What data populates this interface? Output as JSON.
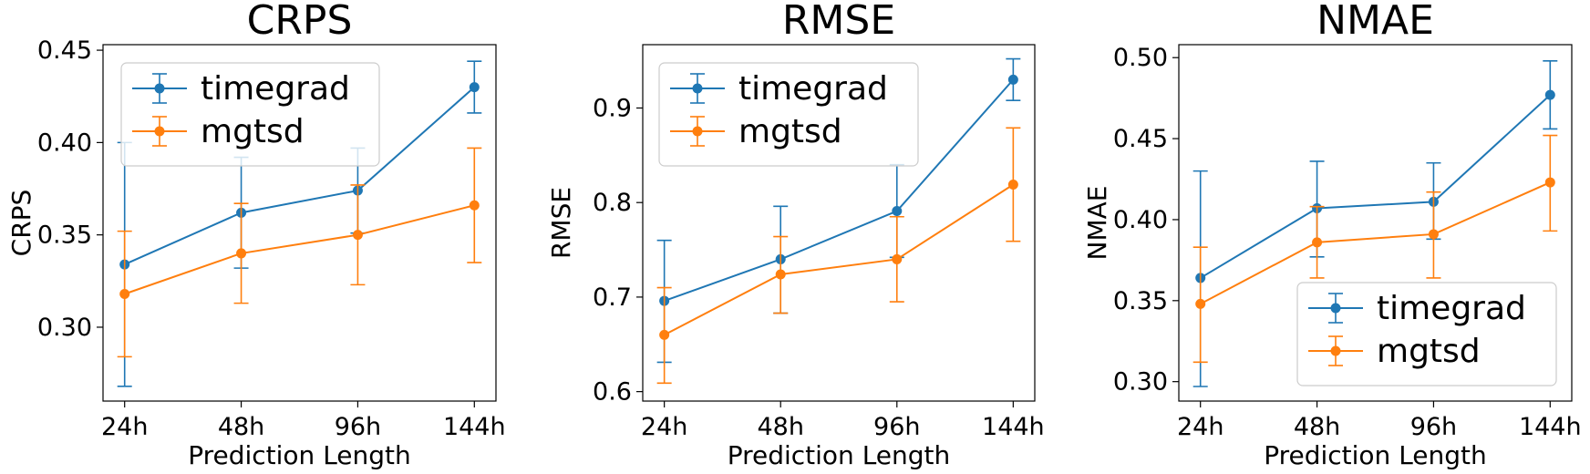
{
  "colors": {
    "timegrad": "#1f77b4",
    "mgtsd": "#ff7f0e"
  },
  "chart_data": [
    {
      "type": "line",
      "title": "CRPS",
      "xlabel": "Prediction Length",
      "ylabel": "CRPS",
      "categories": [
        "24h",
        "48h",
        "96h",
        "144h"
      ],
      "ylim": [
        0.26,
        0.453
      ],
      "yticks": [
        0.3,
        0.35,
        0.4,
        0.45
      ],
      "ytick_labels": [
        "0.30",
        "0.35",
        "0.40",
        "0.45"
      ],
      "legend_position": "upper-left",
      "series": [
        {
          "name": "timegrad",
          "values": [
            0.334,
            0.362,
            0.374,
            0.43
          ],
          "err_low": [
            0.268,
            0.332,
            0.351,
            0.416
          ],
          "err_high": [
            0.4,
            0.392,
            0.397,
            0.444
          ]
        },
        {
          "name": "mgtsd",
          "values": [
            0.318,
            0.34,
            0.35,
            0.366
          ],
          "err_low": [
            0.284,
            0.313,
            0.323,
            0.335
          ],
          "err_high": [
            0.352,
            0.367,
            0.377,
            0.397
          ]
        }
      ]
    },
    {
      "type": "line",
      "title": "RMSE",
      "xlabel": "Prediction Length",
      "ylabel": "RMSE",
      "categories": [
        "24h",
        "48h",
        "96h",
        "144h"
      ],
      "ylim": [
        0.59,
        0.967
      ],
      "yticks": [
        0.6,
        0.7,
        0.8,
        0.9
      ],
      "ytick_labels": [
        "0.6",
        "0.7",
        "0.8",
        "0.9"
      ],
      "legend_position": "upper-left",
      "series": [
        {
          "name": "timegrad",
          "values": [
            0.696,
            0.74,
            0.791,
            0.93
          ],
          "err_low": [
            0.631,
            0.683,
            0.742,
            0.908
          ],
          "err_high": [
            0.76,
            0.796,
            0.84,
            0.952
          ]
        },
        {
          "name": "mgtsd",
          "values": [
            0.66,
            0.724,
            0.74,
            0.819
          ],
          "err_low": [
            0.609,
            0.683,
            0.695,
            0.759
          ],
          "err_high": [
            0.71,
            0.764,
            0.785,
            0.879
          ]
        }
      ]
    },
    {
      "type": "line",
      "title": "NMAE",
      "xlabel": "Prediction Length",
      "ylabel": "NMAE",
      "categories": [
        "24h",
        "48h",
        "96h",
        "144h"
      ],
      "ylim": [
        0.288,
        0.508
      ],
      "yticks": [
        0.3,
        0.35,
        0.4,
        0.45,
        0.5
      ],
      "ytick_labels": [
        "0.30",
        "0.35",
        "0.40",
        "0.45",
        "0.50"
      ],
      "legend_position": "lower-right",
      "series": [
        {
          "name": "timegrad",
          "values": [
            0.364,
            0.407,
            0.411,
            0.477
          ],
          "err_low": [
            0.297,
            0.377,
            0.388,
            0.456
          ],
          "err_high": [
            0.43,
            0.436,
            0.435,
            0.498
          ]
        },
        {
          "name": "mgtsd",
          "values": [
            0.348,
            0.386,
            0.391,
            0.423
          ],
          "err_low": [
            0.312,
            0.364,
            0.364,
            0.393
          ],
          "err_high": [
            0.383,
            0.408,
            0.417,
            0.452
          ]
        }
      ]
    }
  ]
}
